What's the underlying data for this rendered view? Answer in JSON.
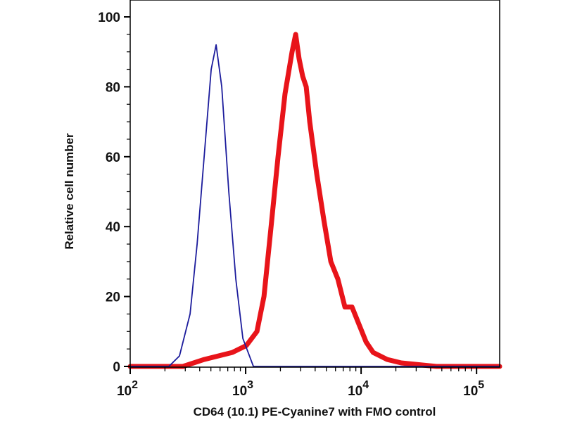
{
  "chart_data": {
    "type": "line",
    "title": "",
    "xlabel": "CD64 (10.1) PE-Cyanine7 with FMO control",
    "ylabel": "Relative cell number",
    "xscale": "log",
    "xlim": [
      100,
      158500
    ],
    "ylim": [
      0,
      100
    ],
    "x_ticks": [
      {
        "value": 100,
        "base": "10",
        "exp": "2"
      },
      {
        "value": 1000,
        "base": "10",
        "exp": "3"
      },
      {
        "value": 10000,
        "base": "10",
        "exp": "4"
      },
      {
        "value": 100000,
        "base": "10",
        "exp": "5"
      }
    ],
    "y_ticks": [
      {
        "value": 0,
        "label": "0"
      },
      {
        "value": 20,
        "label": "20"
      },
      {
        "value": 40,
        "label": "40"
      },
      {
        "value": 60,
        "label": "60"
      },
      {
        "value": 80,
        "label": "80"
      },
      {
        "value": 100,
        "label": "100"
      }
    ],
    "grid": false,
    "series": [
      {
        "name": "FMO control",
        "color": "#1c1c9c",
        "x": [
          100,
          216,
          267,
          330,
          380,
          437,
          503,
          555,
          621,
          714,
          822,
          946,
          1167,
          158500
        ],
        "y": [
          0,
          0,
          3,
          15,
          35,
          60,
          85,
          92,
          80,
          50,
          25,
          8,
          0,
          0
        ]
      },
      {
        "name": "CD64 PE-Cyanine7",
        "color": "#e8141a",
        "x": [
          100,
          286,
          437,
          766,
          1014,
          1253,
          1442,
          1660,
          1907,
          2194,
          2523,
          2709,
          2904,
          3120,
          3343,
          3589,
          4130,
          4753,
          5470,
          6295,
          7244,
          8337,
          9594,
          11040,
          12700,
          16830,
          22290,
          44870,
          158500
        ],
        "y": [
          0,
          0,
          2,
          4,
          6,
          10,
          20,
          40,
          60,
          78,
          90,
          95,
          88,
          83,
          80,
          70,
          55,
          42,
          30,
          25,
          17,
          17,
          12,
          7,
          4,
          2,
          1,
          0,
          0
        ]
      }
    ]
  }
}
